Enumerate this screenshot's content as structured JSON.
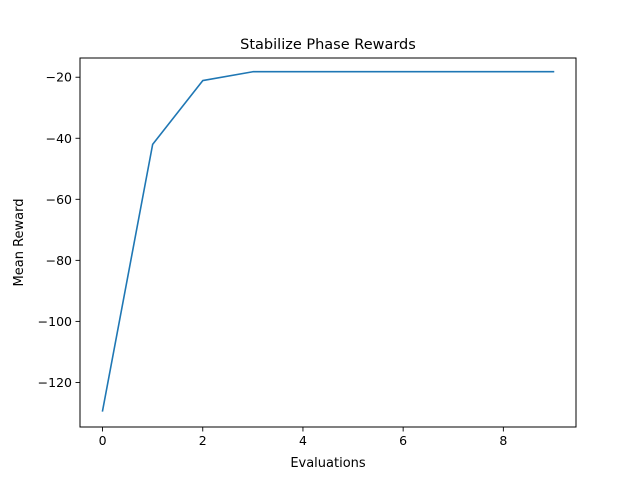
{
  "chart_data": {
    "type": "line",
    "title": "Stabilize Phase Rewards",
    "xlabel": "Evaluations",
    "ylabel": "Mean Reward",
    "xlim": [
      -0.45,
      9.45
    ],
    "ylim": [
      -134.6,
      -13.7
    ],
    "xticks": [
      0,
      2,
      4,
      6,
      8
    ],
    "yticks": [
      -120,
      -100,
      -80,
      -60,
      -40,
      -20
    ],
    "xtick_labels": [
      "0",
      "2",
      "4",
      "6",
      "8"
    ],
    "ytick_labels": [
      "−120",
      "−100",
      "−80",
      "−60",
      "−40",
      "−20"
    ],
    "grid": false,
    "legend": "none",
    "series": [
      {
        "x": [
          0,
          1,
          2,
          3,
          4,
          5,
          6,
          7,
          8,
          9
        ],
        "values": [
          -129.3,
          -42.0,
          -21.1,
          -18.2,
          -18.2,
          -18.2,
          -18.2,
          -18.2,
          -18.2,
          -18.2
        ],
        "color": "#1f77b4"
      }
    ]
  }
}
